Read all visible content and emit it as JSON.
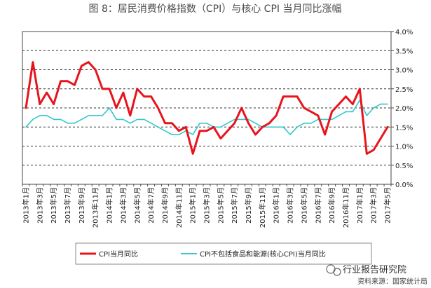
{
  "chart_data": {
    "type": "line",
    "title": "图 8：居民消费价格指数（CPI）与核心 CPI 当月同比涨幅",
    "xlabel": "",
    "ylabel": "",
    "ylim": [
      0.0,
      4.0
    ],
    "y_ticks": [
      "0.0%",
      "0.5%",
      "1.0%",
      "1.5%",
      "2.0%",
      "2.5%",
      "3.0%",
      "3.5%",
      "4.0%"
    ],
    "x_tick_labels": [
      "2013年1月",
      "2013年3月",
      "2013年5月",
      "2013年7月",
      "2013年9月",
      "2013年11月",
      "2014年1月",
      "2014年3月",
      "2014年5月",
      "2014年7月",
      "2014年9月",
      "2014年11月",
      "2015年1月",
      "2015年3月",
      "2015年5月",
      "2015年7月",
      "2015年9月",
      "2015年11月",
      "2016年1月",
      "2016年3月",
      "2016年5月",
      "2016年7月",
      "2016年9月",
      "2016年11月",
      "2017年1月",
      "2017年3月",
      "2017年5月"
    ],
    "x_months_count": 53,
    "grid": "horizontal-dashed",
    "legend_position": "bottom",
    "series": [
      {
        "name": "CPI当月同比",
        "color": "#e8141c",
        "values": [
          2.0,
          3.2,
          2.1,
          2.4,
          2.1,
          2.7,
          2.7,
          2.6,
          3.1,
          3.2,
          3.0,
          2.5,
          2.5,
          2.0,
          2.4,
          1.8,
          2.5,
          2.3,
          2.3,
          2.0,
          1.6,
          1.6,
          1.4,
          1.5,
          0.8,
          1.4,
          1.4,
          1.5,
          1.2,
          1.4,
          1.6,
          2.0,
          1.6,
          1.3,
          1.5,
          1.6,
          1.8,
          2.3,
          2.3,
          2.3,
          2.0,
          1.9,
          1.8,
          1.3,
          1.9,
          2.1,
          2.3,
          2.1,
          2.5,
          0.8,
          0.9,
          1.2,
          1.5
        ]
      },
      {
        "name": "CPI不包括食品和能源(核心CPI)当月同比",
        "color": "#33c8cc",
        "values": [
          1.5,
          1.7,
          1.8,
          1.8,
          1.7,
          1.7,
          1.6,
          1.6,
          1.7,
          1.8,
          1.8,
          1.8,
          2.0,
          1.7,
          1.7,
          1.6,
          1.7,
          1.7,
          1.6,
          1.5,
          1.4,
          1.3,
          1.3,
          1.4,
          1.3,
          1.6,
          1.6,
          1.5,
          1.5,
          1.6,
          1.7,
          1.7,
          1.7,
          1.6,
          1.5,
          1.5,
          1.5,
          1.5,
          1.3,
          1.5,
          1.6,
          1.6,
          1.7,
          1.7,
          1.7,
          1.8,
          1.9,
          1.9,
          2.2,
          1.8,
          2.0,
          2.1,
          2.1
        ]
      }
    ]
  },
  "watermark": {
    "text": "行业报告研究院",
    "source": "资料来源：国家统计局"
  }
}
